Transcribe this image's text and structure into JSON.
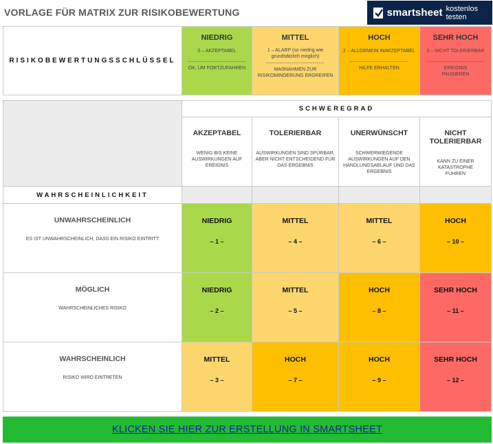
{
  "header": {
    "title": "VORLAGE FÜR MATRIX ZUR RISIKOBEWERTUNG",
    "logo_brand": "smartsheet",
    "logo_cta": "kostenlos testen"
  },
  "colors": {
    "niedrig": "#a9d94a",
    "mittel": "#fdd66e",
    "hoch": "#fdbf00",
    "sehr_hoch": "#fe6a63",
    "grey": "#ececec",
    "cta": "#22bb33",
    "logo_bg": "#0b2447"
  },
  "key": {
    "title": "RISIKOBEWERTUNGSSCHLÜSSEL",
    "separator": "------------------------------",
    "levels": [
      {
        "level": "NIEDRIG",
        "desc": "0 – AKZEPTABEL",
        "action": "OK, UM FORTZUFAHREN"
      },
      {
        "level": "MITTEL",
        "desc": "1 – ALARP (so niedrig wie grundsätzlich möglich)",
        "action": "MAẞNAHMEN ZUR RISIKOMINDERUNG ERGREIFEN"
      },
      {
        "level": "HOCH",
        "desc": "2 – ALLGEMEIN INAKZEPTABEL",
        "action": "HILFE ERHALTEN"
      },
      {
        "level": "SEHR HOCH",
        "desc": "3 – NICHT TOLERIERBAR",
        "action": "EREIGNIS PAUSIEREN"
      }
    ]
  },
  "matrix": {
    "severity_title": "SCHWEREGRAD",
    "probability_title": "WAHRSCHEINLICHKEIT",
    "severity": [
      {
        "label": "AKZEPTABEL",
        "desc": "WENIG BIS KEINE AUSWIRKUNGEN AUF EREIGNIS"
      },
      {
        "label": "TOLERIERBAR",
        "desc": "AUSWIRKUNGEN SIND SPÜRBAR, ABER NICHT ENTSCHEIDEND FÜR DAS ERGEBNIS"
      },
      {
        "label": "UNERWÜNSCHT",
        "desc": "SCHWERWIEGENDE AUSWIRKUNGEN AUF DEN HANDLUNGSABLAUF UND DAS ERGEBNIS"
      },
      {
        "label": "NICHT TOLERIERBAR",
        "desc": "KANN ZU EINER KATASTROPHE FÜHREN"
      }
    ],
    "rows": [
      {
        "label": "UNWAHRSCHEINLICH",
        "desc": "ES IST UNWAHRSCHEINLICH, DASS EIN RISIKO EINTRITT",
        "cells": [
          {
            "level": "NIEDRIG",
            "num": "– 1 –",
            "color": "#a9d94a"
          },
          {
            "level": "MITTEL",
            "num": "– 4 –",
            "color": "#fdd66e"
          },
          {
            "level": "MITTEL",
            "num": "– 6 –",
            "color": "#fdd66e"
          },
          {
            "level": "HOCH",
            "num": "– 10 –",
            "color": "#fdbf00"
          }
        ]
      },
      {
        "label": "MÖGLICH",
        "desc": "WAHRSCHEINLICHES RISIKO",
        "cells": [
          {
            "level": "NIEDRIG",
            "num": "– 2 –",
            "color": "#a9d94a"
          },
          {
            "level": "MITTEL",
            "num": "– 5 –",
            "color": "#fdd66e"
          },
          {
            "level": "HOCH",
            "num": "– 8 –",
            "color": "#fdbf00"
          },
          {
            "level": "SEHR HOCH",
            "num": "– 11 –",
            "color": "#fe6a63"
          }
        ]
      },
      {
        "label": "WAHRSCHEINLICH",
        "desc": "RISIKO WIRD EINTRETEN",
        "cells": [
          {
            "level": "MITTEL",
            "num": "– 3 –",
            "color": "#fdd66e"
          },
          {
            "level": "HOCH",
            "num": "– 7 –",
            "color": "#fdbf00"
          },
          {
            "level": "HOCH",
            "num": "– 9 –",
            "color": "#fdbf00"
          },
          {
            "level": "SEHR HOCH",
            "num": "– 12 –",
            "color": "#fe6a63"
          }
        ]
      }
    ]
  },
  "cta": {
    "label": "KLICKEN SIE HIER ZUR ERSTELLUNG IN SMARTSHEET"
  }
}
